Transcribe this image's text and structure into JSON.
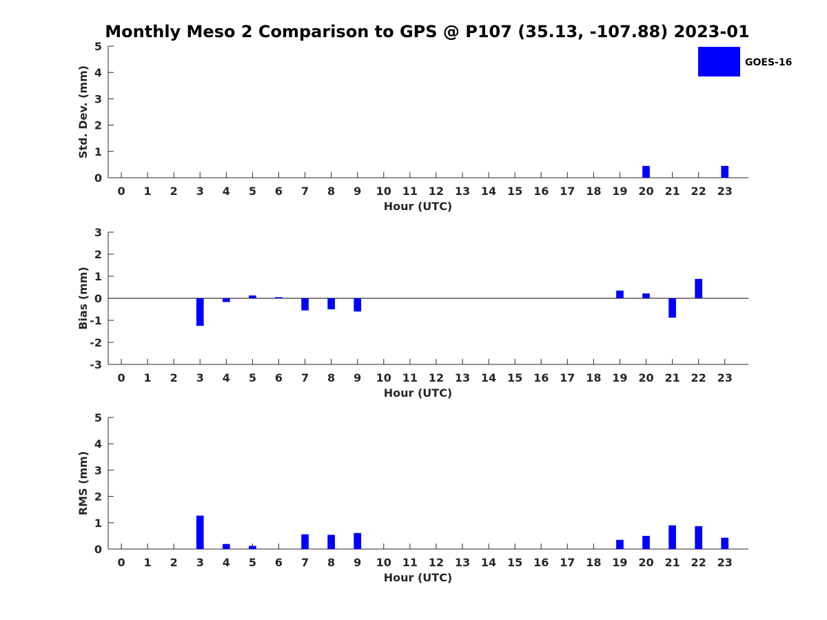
{
  "colors": {
    "bar": "#0000ff",
    "axis": "#262626",
    "background": "#ffffff"
  },
  "title": "Monthly Meso 2 Comparison to GPS @ P107 (35.13, -107.88) 2023-01",
  "legend": {
    "label": "GOES-16",
    "placement": "top-right"
  },
  "chart_data": [
    {
      "type": "bar",
      "xlabel": "Hour (UTC)",
      "ylabel": "Std. Dev. (mm)",
      "ylim": [
        0,
        5
      ],
      "yticks": [
        "0",
        "1",
        "2",
        "3",
        "4",
        "5"
      ],
      "categories": [
        "0",
        "1",
        "2",
        "3",
        "4",
        "5",
        "6",
        "7",
        "8",
        "9",
        "10",
        "11",
        "12",
        "13",
        "14",
        "15",
        "16",
        "17",
        "18",
        "19",
        "20",
        "21",
        "22",
        "23"
      ],
      "series": [
        {
          "name": "GOES-16",
          "values": [
            0,
            0,
            0,
            0,
            0,
            0,
            0,
            0,
            0,
            0,
            0,
            0,
            0,
            0,
            0,
            0,
            0,
            0,
            0,
            0,
            0.45,
            0,
            0,
            0.45
          ]
        }
      ],
      "zero_line": false,
      "grid": false
    },
    {
      "type": "bar",
      "xlabel": "Hour (UTC)",
      "ylabel": "Bias (mm)",
      "ylim": [
        -3,
        3
      ],
      "yticks": [
        "-3",
        "-2",
        "-1",
        "0",
        "1",
        "2",
        "3"
      ],
      "categories": [
        "0",
        "1",
        "2",
        "3",
        "4",
        "5",
        "6",
        "7",
        "8",
        "9",
        "10",
        "11",
        "12",
        "13",
        "14",
        "15",
        "16",
        "17",
        "18",
        "19",
        "20",
        "21",
        "22",
        "23"
      ],
      "series": [
        {
          "name": "GOES-16",
          "values": [
            0,
            0,
            0,
            -1.25,
            -0.17,
            0.13,
            0.05,
            -0.55,
            -0.5,
            -0.6,
            0,
            0,
            0,
            0,
            0,
            0,
            0,
            0,
            0,
            0.35,
            0.22,
            -0.88,
            0.88,
            0
          ]
        }
      ],
      "zero_line": true,
      "grid": false
    },
    {
      "type": "bar",
      "xlabel": "Hour (UTC)",
      "ylabel": "RMS (mm)",
      "ylim": [
        0,
        5
      ],
      "yticks": [
        "0",
        "1",
        "2",
        "3",
        "4",
        "5"
      ],
      "categories": [
        "0",
        "1",
        "2",
        "3",
        "4",
        "5",
        "6",
        "7",
        "8",
        "9",
        "10",
        "11",
        "12",
        "13",
        "14",
        "15",
        "16",
        "17",
        "18",
        "19",
        "20",
        "21",
        "22",
        "23"
      ],
      "series": [
        {
          "name": "GOES-16",
          "values": [
            0,
            0,
            0,
            1.27,
            0.19,
            0.12,
            0,
            0.56,
            0.54,
            0.61,
            0,
            0,
            0,
            0,
            0,
            0,
            0,
            0,
            0,
            0.35,
            0.5,
            0.9,
            0.87,
            0.43
          ]
        }
      ],
      "zero_line": false,
      "grid": false
    }
  ]
}
